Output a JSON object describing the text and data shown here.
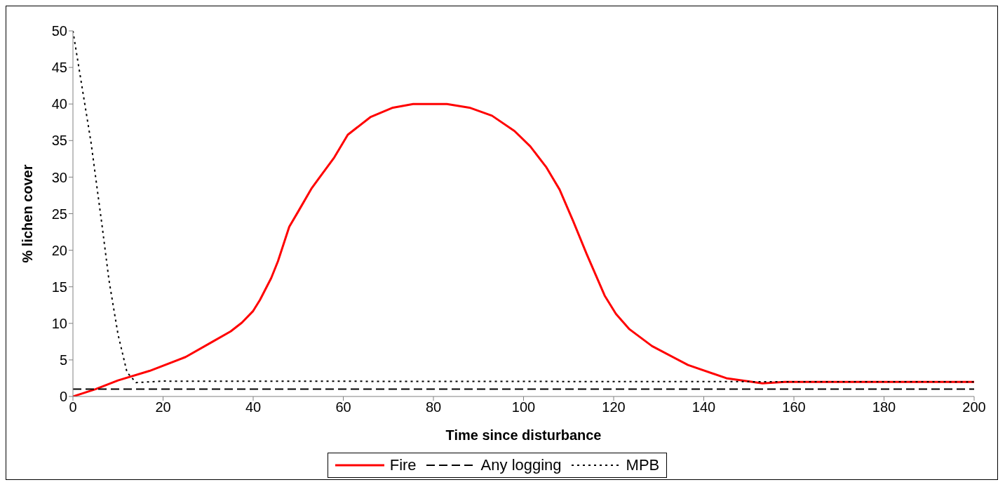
{
  "chart_data": {
    "type": "line",
    "xlabel": "Time since disturbance",
    "ylabel": "% lichen cover",
    "xlim": [
      0,
      200
    ],
    "xticks": [
      0,
      20,
      40,
      60,
      80,
      100,
      120,
      140,
      160,
      180,
      200
    ],
    "ylim": [
      0,
      50
    ],
    "yticks": [
      0,
      5,
      10,
      15,
      20,
      25,
      30,
      35,
      40,
      45,
      50
    ],
    "grid": false,
    "legend": "bottom",
    "marker": "none",
    "series": [
      {
        "name": "Fire",
        "color": "#ff0000",
        "line_style": "solid",
        "x": [
          0,
          5,
          10,
          17,
          25,
          31,
          35,
          37.5,
          40,
          41.5,
          44,
          45.5,
          48,
          50,
          53,
          58,
          61,
          66,
          71,
          75.5,
          83,
          88,
          93,
          98,
          101.5,
          105,
          108,
          111,
          114,
          118,
          120.5,
          123.5,
          128.5,
          136.5,
          145,
          153,
          158,
          200
        ],
        "values": [
          0,
          1,
          2.2,
          3.5,
          5.4,
          7.5,
          8.9,
          10.1,
          11.7,
          13.2,
          16.2,
          18.5,
          23.2,
          25.3,
          28.5,
          32.7,
          35.8,
          38.2,
          39.5,
          40,
          40,
          39.5,
          38.4,
          36.3,
          34.2,
          31.4,
          28.3,
          24,
          19.5,
          13.8,
          11.3,
          9.2,
          6.9,
          4.3,
          2.5,
          1.8,
          2,
          2
        ]
      },
      {
        "name": "Any logging",
        "color": "#000000",
        "line_style": "dashed",
        "x": [
          0,
          200
        ],
        "values": [
          1,
          1
        ]
      },
      {
        "name": "MPB",
        "color": "#000000",
        "line_style": "dotted",
        "x": [
          0,
          4,
          6.5,
          8,
          10,
          12,
          14,
          20,
          200
        ],
        "values": [
          50,
          34.8,
          23.2,
          15.9,
          8.5,
          3.3,
          1.9,
          2.1,
          2
        ]
      }
    ]
  }
}
